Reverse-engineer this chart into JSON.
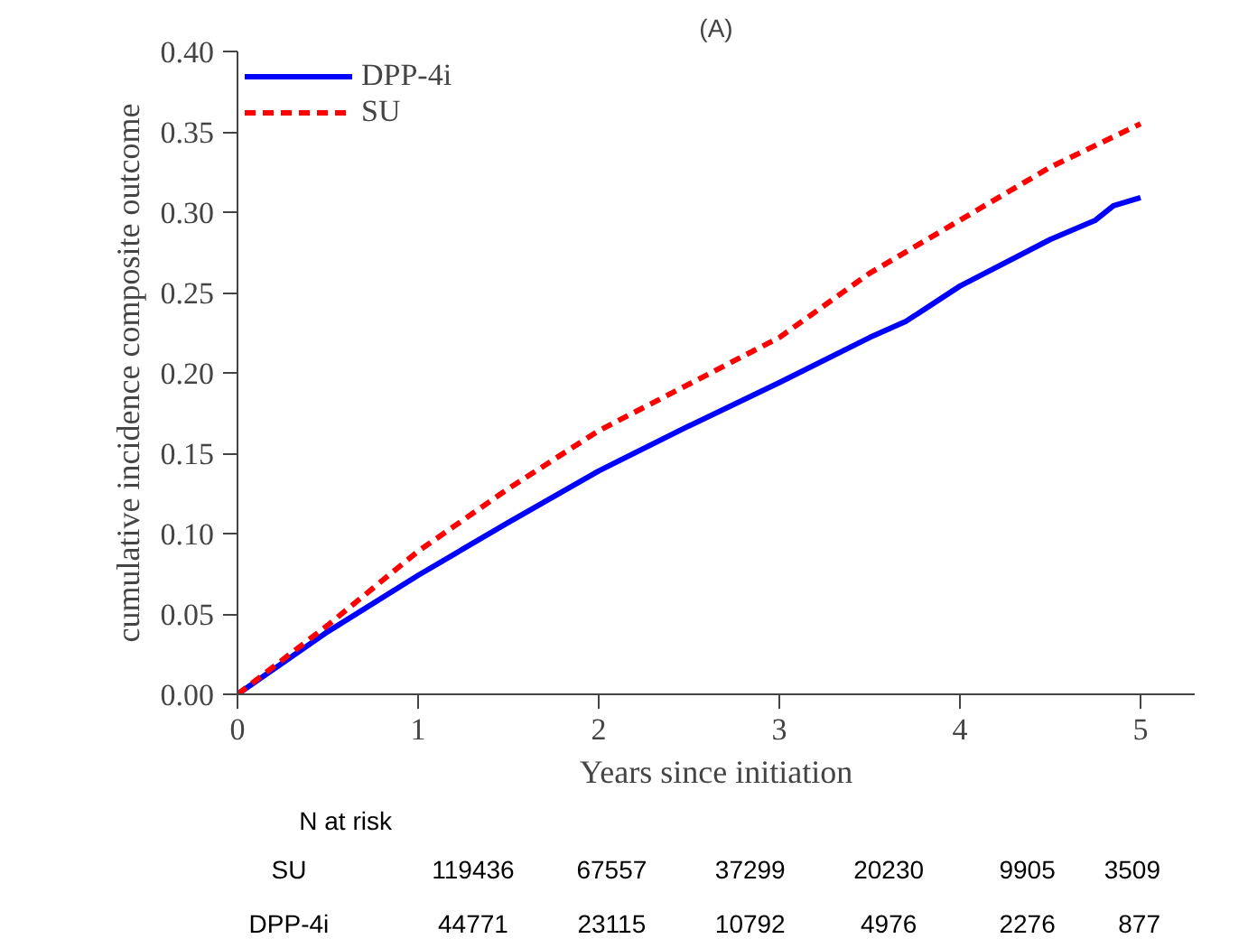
{
  "chart_data": {
    "type": "line",
    "title": "(A)",
    "xlabel": "Years since initiation",
    "ylabel": "cumulative incidence composite outcome",
    "xlim": [
      0,
      5.3
    ],
    "xticks": [
      0,
      1,
      2,
      3,
      4,
      5
    ],
    "ylim": [
      0,
      0.4
    ],
    "yticks": [
      {
        "value": 0,
        "label": "0.00"
      },
      {
        "value": 0.05,
        "label": "0.05"
      },
      {
        "value": 0.1,
        "label": "0.10"
      },
      {
        "value": 0.15,
        "label": "0.15"
      },
      {
        "value": 0.2,
        "label": "0.20"
      },
      {
        "value": 0.25,
        "label": "0.25"
      },
      {
        "value": 0.3,
        "label": "0.30"
      },
      {
        "value": 0.35,
        "label": "0.35"
      },
      {
        "value": 0.4,
        "label": "0.40"
      }
    ],
    "grid": false,
    "legend": "top left",
    "marker": "none",
    "series": [
      {
        "name": "DPP-4i",
        "color": "#0000ff",
        "line_style": "solid",
        "x": [
          0,
          0.5,
          1,
          1.5,
          2,
          2.5,
          3,
          3.5,
          3.7,
          4,
          4.5,
          4.75,
          4.85,
          5
        ],
        "values": [
          0,
          0.039,
          0.074,
          0.107,
          0.139,
          0.167,
          0.194,
          0.222,
          0.232,
          0.254,
          0.283,
          0.295,
          0.304,
          0.309
        ]
      },
      {
        "name": "SU",
        "color": "#ff0000",
        "line_style": "dashed",
        "x": [
          0,
          0.5,
          1,
          1.5,
          2,
          2.5,
          3,
          3.5,
          4,
          4.5,
          5
        ],
        "values": [
          0,
          0.043,
          0.089,
          0.128,
          0.164,
          0.193,
          0.222,
          0.262,
          0.295,
          0.328,
          0.355
        ]
      }
    ],
    "annotations": [
      "N at risk",
      "SU",
      "119436",
      "67557",
      "37299",
      "20230",
      "9905",
      "3509",
      "DPP-4i",
      "44771",
      "23115",
      "10792",
      "4976",
      "2276",
      "877"
    ]
  }
}
